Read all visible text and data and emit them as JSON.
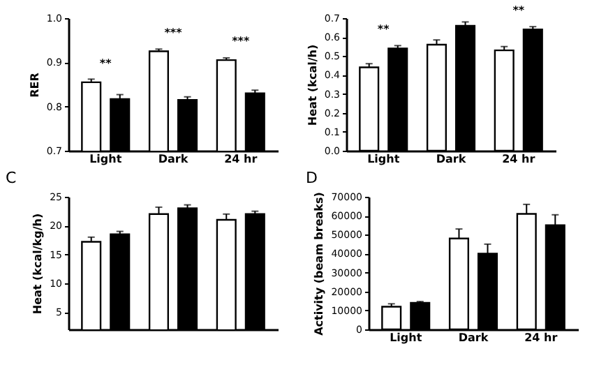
{
  "chart_data": [
    {
      "type": "bar",
      "ylabel": "RER",
      "categories": [
        "Light",
        "Dark",
        "24 hr"
      ],
      "ylim": [
        0.7,
        1.0
      ],
      "yticks": [
        0.7,
        0.8,
        0.9,
        {
          "value": 1,
          "label": "1.0"
        }
      ],
      "series": [
        {
          "color": "#ffffff",
          "values": [
            0.855,
            0.925,
            0.905
          ],
          "errors": [
            0.007,
            0.005,
            0.005
          ]
        },
        {
          "color": "#000000",
          "values": [
            0.817,
            0.815,
            0.83
          ],
          "errors": [
            0.01,
            0.007,
            0.007
          ]
        }
      ],
      "annotations": [
        {
          "text": "**",
          "x": "Light",
          "y": 0.855
        },
        {
          "text": "***",
          "x": "Dark",
          "y": 0.925
        },
        {
          "text": "***",
          "x": "24 hr",
          "y": 0.905
        }
      ]
    },
    {
      "type": "bar",
      "ylabel": "Heat (kcal/h)",
      "categories": [
        "Light",
        "Dark",
        "24 hr"
      ],
      "ylim": [
        0,
        0.7
      ],
      "yticks": [
        {
          "value": 0,
          "label": "0.0"
        },
        0.1,
        0.2,
        0.3,
        0.4,
        0.5,
        0.6,
        0.7
      ],
      "series": [
        {
          "color": "#ffffff",
          "values": [
            0.44,
            0.56,
            0.53
          ],
          "errors": [
            0.02,
            0.025,
            0.02
          ]
        },
        {
          "color": "#000000",
          "values": [
            0.54,
            0.66,
            0.64
          ],
          "errors": [
            0.015,
            0.02,
            0.015
          ]
        }
      ],
      "annotations": [
        {
          "text": "**",
          "x": "Light",
          "y": 0.54
        },
        {
          "text": "**",
          "x": "24 hr",
          "y": 0.64
        }
      ]
    },
    {
      "type": "bar",
      "title": "C",
      "ylabel": "Heat (kcal/kg/h)",
      "categories": [
        null,
        null,
        null
      ],
      "ylim": [
        2,
        25
      ],
      "yticks": [
        5,
        10,
        15,
        20,
        25
      ],
      "series": [
        {
          "color": "#ffffff",
          "values": [
            17.2,
            22,
            21
          ],
          "errors": [
            0.8,
            1.2,
            1
          ]
        },
        {
          "color": "#000000",
          "values": [
            18.5,
            23,
            22
          ],
          "errors": [
            0.5,
            0.6,
            0.5
          ]
        }
      ]
    },
    {
      "type": "bar",
      "title": "D",
      "ylabel": "Activity (beam breaks)",
      "categories": [
        "Light",
        "Dark",
        "24 hr"
      ],
      "ylim": [
        0,
        70000
      ],
      "yticks": [
        0,
        10000,
        20000,
        30000,
        40000,
        50000,
        60000,
        70000
      ],
      "series": [
        {
          "color": "#ffffff",
          "values": [
            12000,
            48000,
            61000
          ],
          "errors": [
            1500,
            5000,
            5000
          ]
        },
        {
          "color": "#000000",
          "values": [
            14000,
            40000,
            55000
          ],
          "errors": [
            700,
            5000,
            5500
          ]
        }
      ]
    }
  ]
}
